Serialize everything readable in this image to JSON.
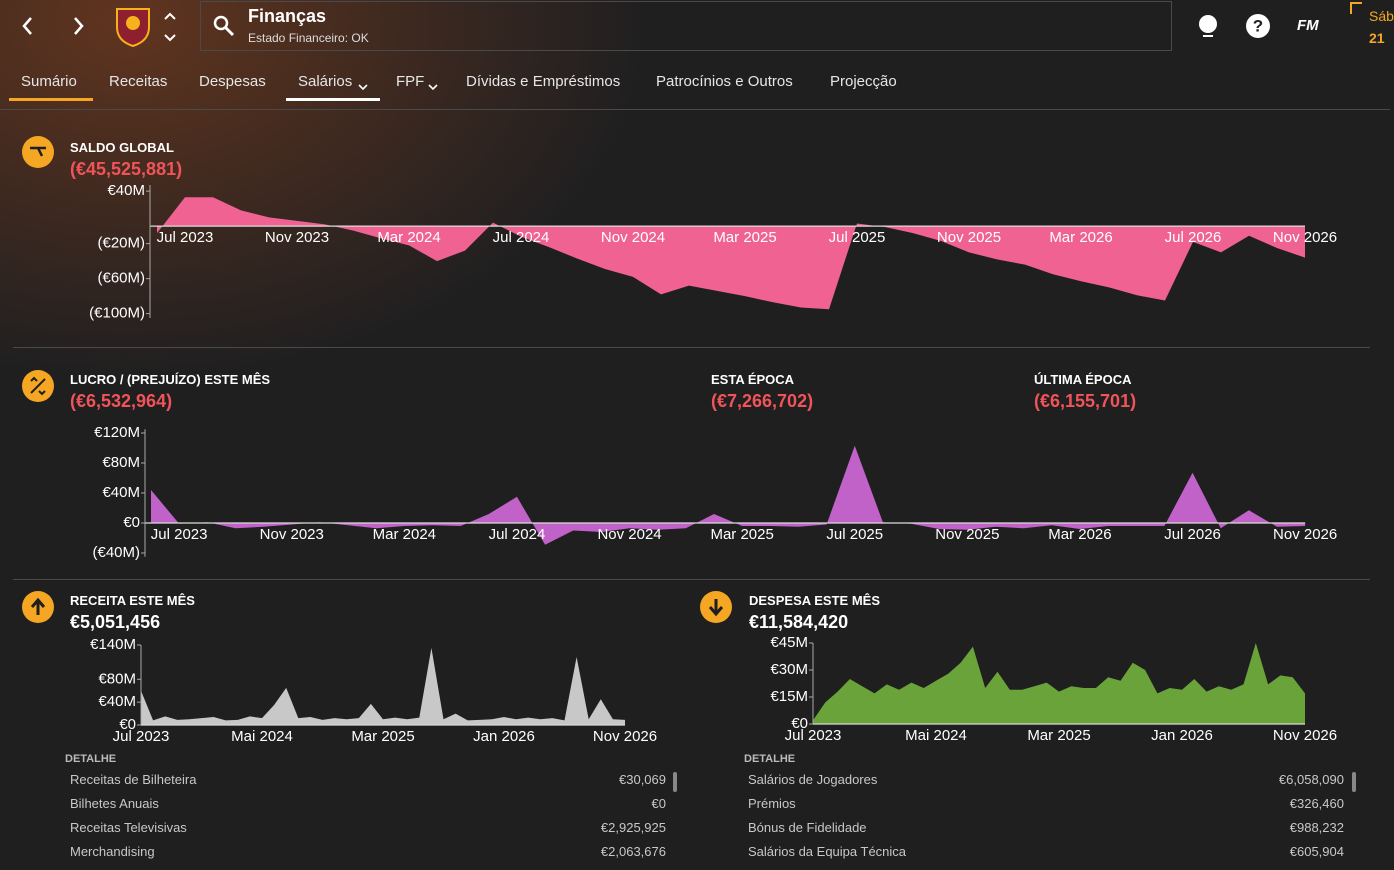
{
  "header": {
    "title": "Finanças",
    "subtitle": "Estado Financeiro: OK",
    "logo": "FM",
    "day": "Sáb",
    "date": "21"
  },
  "tabs": [
    "Sumário",
    "Receitas",
    "Despesas",
    "Salários",
    "FPF",
    "Dívidas e Empréstimos",
    "Patrocínios e Outros",
    "Projecção"
  ],
  "panels": [
    {
      "title": "SALDO GLOBAL",
      "value": "(€45,525,881)"
    },
    {
      "title": "LUCRO / (PREJUÍZO) ESTE MÊS",
      "value": "(€6,532,964)"
    },
    {
      "title": "ESTA ÉPOCA",
      "value": "(€7,266,702)"
    },
    {
      "title": "ÚLTIMA ÉPOCA",
      "value": "(€6,155,701)"
    },
    {
      "title": "RECEITA ESTE MÊS",
      "value": "€5,051,456"
    },
    {
      "title": "DESPESA ESTE MÊS",
      "value": "€11,584,420"
    }
  ],
  "chart_data": [
    {
      "type": "area",
      "color": "#f06292",
      "ylim": [
        -105,
        47
      ],
      "yticks": [
        {
          "value": 40,
          "label": "€40M"
        },
        {
          "value": -20,
          "label": "(€20M)"
        },
        {
          "value": -60,
          "label": "(€60M)"
        },
        {
          "value": -100,
          "label": "(€100M)"
        }
      ],
      "categories": [
        null,
        "Jul 2023",
        null,
        null,
        null,
        "Nov 2023",
        null,
        null,
        null,
        "Mar 2024",
        null,
        null,
        null,
        "Jul 2024",
        null,
        null,
        null,
        "Nov 2024",
        null,
        null,
        null,
        "Mar 2025",
        null,
        null,
        null,
        "Jul 2025",
        null,
        null,
        null,
        "Nov 2025",
        null,
        null,
        null,
        "Mar 2026",
        null,
        null,
        null,
        "Jul 2026",
        null,
        null,
        null,
        "Nov 2026"
      ],
      "values": [
        -8,
        33,
        33,
        18,
        10,
        6,
        2,
        -5,
        -14,
        -22,
        -40,
        -28,
        4,
        -12,
        -24,
        -37,
        -49,
        -58,
        -78,
        -68,
        -74,
        -80,
        -87,
        -93,
        -95,
        3,
        -1,
        -8,
        -17,
        -30,
        -38,
        -44,
        -55,
        -63,
        -70,
        -79,
        -85,
        -18,
        -30,
        -11,
        -25,
        -36
      ]
    },
    {
      "type": "area",
      "color": "#c062c8",
      "ylim": [
        -45,
        125
      ],
      "yticks": [
        {
          "value": 120,
          "label": "€120M"
        },
        {
          "value": 80,
          "label": "€80M"
        },
        {
          "value": 40,
          "label": "€40M"
        },
        {
          "value": 0,
          "label": "€0"
        },
        {
          "value": -40,
          "label": "(€40M)"
        }
      ],
      "categories": [
        null,
        "Jul 2023",
        null,
        null,
        null,
        "Nov 2023",
        null,
        null,
        null,
        "Mar 2024",
        null,
        null,
        null,
        "Jul 2024",
        null,
        null,
        null,
        "Nov 2024",
        null,
        null,
        null,
        "Mar 2025",
        null,
        null,
        null,
        "Jul 2025",
        null,
        null,
        null,
        "Nov 2025",
        null,
        null,
        null,
        "Mar 2026",
        null,
        null,
        null,
        "Jul 2026",
        null,
        null,
        null,
        "Nov 2026"
      ],
      "values": [
        44,
        -1,
        1,
        -7,
        -5,
        -2,
        1,
        -3,
        -7,
        -4,
        -3,
        -4,
        12,
        35,
        -29,
        -10,
        -12,
        -7,
        -9,
        -7,
        12,
        -4,
        -4,
        -5,
        -2,
        103,
        1,
        -1,
        -8,
        -9,
        -5,
        -7,
        -3,
        -8,
        -4,
        -4,
        -4,
        67,
        -7,
        17,
        -5,
        -4
      ]
    },
    {
      "type": "area",
      "color": "#c8c8c8",
      "ylim": [
        0,
        140
      ],
      "yticks": [
        {
          "value": 140,
          "label": "€140M"
        },
        {
          "value": 80,
          "label": "€80M"
        },
        {
          "value": 40,
          "label": "€40M"
        },
        {
          "value": 0,
          "label": "€0"
        }
      ],
      "categories": [
        "Jul 2023",
        null,
        null,
        null,
        null,
        null,
        null,
        null,
        null,
        null,
        "Mai 2024",
        null,
        null,
        null,
        null,
        null,
        null,
        null,
        null,
        null,
        "Mar 2025",
        null,
        null,
        null,
        null,
        null,
        null,
        null,
        null,
        null,
        "Jan 2026",
        null,
        null,
        null,
        null,
        null,
        null,
        null,
        null,
        null,
        "Nov 2026"
      ],
      "values": [
        60,
        8,
        15,
        9,
        10,
        12,
        14,
        8,
        9,
        15,
        12,
        35,
        65,
        12,
        14,
        9,
        12,
        10,
        12,
        37,
        10,
        13,
        10,
        13,
        135,
        10,
        20,
        8,
        9,
        10,
        14,
        10,
        13,
        10,
        12,
        8,
        119,
        10,
        45,
        10,
        9
      ]
    },
    {
      "type": "area",
      "color": "#6aa33a",
      "ylim": [
        0,
        45
      ],
      "yticks": [
        {
          "value": 45,
          "label": "€45M"
        },
        {
          "value": 30,
          "label": "€30M"
        },
        {
          "value": 15,
          "label": "€15M"
        },
        {
          "value": 0,
          "label": "€0"
        }
      ],
      "categories": [
        "Jul 2023",
        null,
        null,
        null,
        null,
        null,
        null,
        null,
        null,
        null,
        "Mai 2024",
        null,
        null,
        null,
        null,
        null,
        null,
        null,
        null,
        null,
        "Mar 2025",
        null,
        null,
        null,
        null,
        null,
        null,
        null,
        null,
        null,
        "Jan 2026",
        null,
        null,
        null,
        null,
        null,
        null,
        null,
        null,
        null,
        "Nov 2026"
      ],
      "values": [
        2,
        12,
        18,
        25,
        21,
        17,
        22,
        19,
        23,
        20,
        24,
        28,
        34,
        43,
        20,
        29,
        19,
        19,
        21,
        23,
        18,
        21,
        20,
        20,
        26,
        24,
        34,
        30,
        17,
        20,
        19,
        25,
        18,
        21,
        19,
        22,
        45,
        22,
        27,
        26,
        17
      ]
    }
  ],
  "details": [
    {
      "title": "DETALHE",
      "rows": [
        [
          "Receitas de Bilheteira",
          "€30,069"
        ],
        [
          "Bilhetes Anuais",
          "€0"
        ],
        [
          "Receitas Televisivas",
          "€2,925,925"
        ],
        [
          "Merchandising",
          "€2,063,676"
        ]
      ]
    },
    {
      "title": "DETALHE",
      "rows": [
        [
          "Salários de Jogadores",
          "€6,058,090"
        ],
        [
          "Prémios",
          "€326,460"
        ],
        [
          "Bónus de Fidelidade",
          "€988,232"
        ],
        [
          "Salários da Equipa Técnica",
          "€605,904"
        ]
      ]
    }
  ]
}
